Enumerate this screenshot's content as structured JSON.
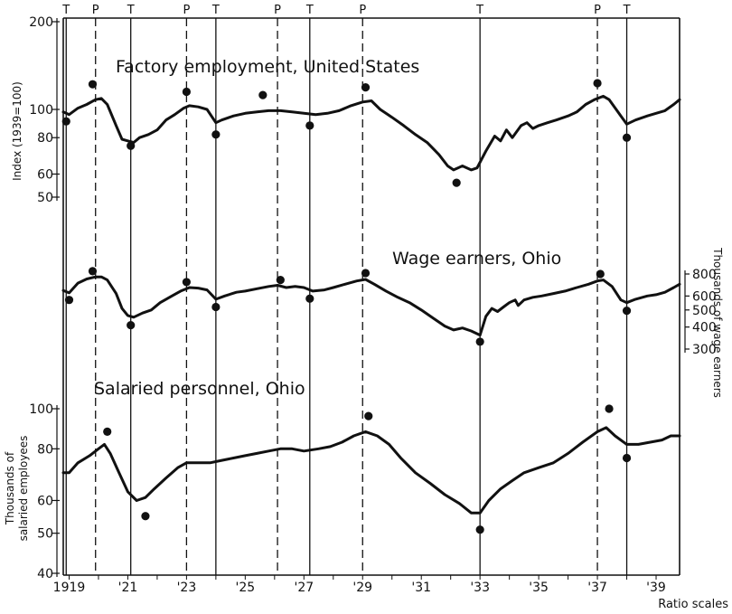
{
  "chart_data": {
    "type": "line",
    "x_axis": {
      "ticks": [
        "1919",
        "'21",
        "'23",
        "'25",
        "'27",
        "'29",
        "'31",
        "'33",
        "'35",
        "'37",
        "'39"
      ],
      "range": [
        1918.8,
        1939.8
      ],
      "note": "Ratio scales"
    },
    "turning_points": [
      {
        "type": "T",
        "x": 1918.9,
        "style": "solid"
      },
      {
        "type": "P",
        "x": 1919.9,
        "style": "dashed"
      },
      {
        "type": "T",
        "x": 1921.1,
        "style": "solid"
      },
      {
        "type": "P",
        "x": 1923.0,
        "style": "dashed"
      },
      {
        "type": "T",
        "x": 1924.0,
        "style": "solid"
      },
      {
        "type": "P",
        "x": 1926.1,
        "style": "dashed"
      },
      {
        "type": "T",
        "x": 1927.2,
        "style": "solid"
      },
      {
        "type": "P",
        "x": 1929.0,
        "style": "dashed"
      },
      {
        "type": "T",
        "x": 1933.0,
        "style": "solid"
      },
      {
        "type": "P",
        "x": 1937.0,
        "style": "dashed"
      },
      {
        "type": "T",
        "x": 1938.0,
        "style": "solid"
      }
    ],
    "panels": [
      {
        "id": "factory",
        "title": "Factory employment, United States",
        "axis_side": "left",
        "ylabel": "Index (1939=100)",
        "yticks": [
          50,
          60,
          80,
          100,
          200
        ],
        "ytick_labels": [
          "50",
          "60",
          "80",
          "100",
          "200"
        ],
        "series": [
          [
            1918.8,
            98
          ],
          [
            1919.0,
            96
          ],
          [
            1919.3,
            101
          ],
          [
            1919.6,
            104
          ],
          [
            1919.9,
            108
          ],
          [
            1920.1,
            109
          ],
          [
            1920.3,
            104
          ],
          [
            1920.6,
            88
          ],
          [
            1920.8,
            79
          ],
          [
            1921.0,
            78
          ],
          [
            1921.2,
            77
          ],
          [
            1921.4,
            80
          ],
          [
            1921.7,
            82
          ],
          [
            1922.0,
            85
          ],
          [
            1922.3,
            92
          ],
          [
            1922.6,
            96
          ],
          [
            1922.9,
            101
          ],
          [
            1923.1,
            103
          ],
          [
            1923.4,
            102
          ],
          [
            1923.7,
            100
          ],
          [
            1924.0,
            90
          ],
          [
            1924.2,
            92
          ],
          [
            1924.6,
            95
          ],
          [
            1925.0,
            97
          ],
          [
            1925.4,
            98
          ],
          [
            1925.8,
            99
          ],
          [
            1926.2,
            99
          ],
          [
            1926.6,
            98
          ],
          [
            1927.0,
            97
          ],
          [
            1927.4,
            96
          ],
          [
            1927.8,
            97
          ],
          [
            1928.2,
            99
          ],
          [
            1928.6,
            103
          ],
          [
            1929.0,
            106
          ],
          [
            1929.3,
            107
          ],
          [
            1929.6,
            100
          ],
          [
            1930.0,
            94
          ],
          [
            1930.4,
            88
          ],
          [
            1930.8,
            82
          ],
          [
            1931.2,
            77
          ],
          [
            1931.6,
            70
          ],
          [
            1931.9,
            64
          ],
          [
            1932.1,
            62
          ],
          [
            1932.4,
            64
          ],
          [
            1932.7,
            62
          ],
          [
            1932.9,
            63
          ],
          [
            1933.2,
            72
          ],
          [
            1933.5,
            81
          ],
          [
            1933.7,
            78
          ],
          [
            1933.9,
            85
          ],
          [
            1934.1,
            80
          ],
          [
            1934.4,
            88
          ],
          [
            1934.6,
            90
          ],
          [
            1934.8,
            86
          ],
          [
            1935.0,
            88
          ],
          [
            1935.3,
            90
          ],
          [
            1935.6,
            92
          ],
          [
            1936.0,
            95
          ],
          [
            1936.3,
            98
          ],
          [
            1936.6,
            104
          ],
          [
            1936.9,
            108
          ],
          [
            1937.2,
            111
          ],
          [
            1937.4,
            108
          ],
          [
            1937.7,
            98
          ],
          [
            1938.0,
            89
          ],
          [
            1938.3,
            92
          ],
          [
            1938.7,
            95
          ],
          [
            1939.0,
            97
          ],
          [
            1939.3,
            99
          ],
          [
            1939.6,
            104
          ],
          [
            1939.8,
            108
          ]
        ],
        "dots": [
          [
            1918.9,
            91
          ],
          [
            1919.8,
            122
          ],
          [
            1921.1,
            75
          ],
          [
            1923.0,
            115
          ],
          [
            1924.0,
            82
          ],
          [
            1925.6,
            112
          ],
          [
            1927.2,
            88
          ],
          [
            1929.1,
            119
          ],
          [
            1932.2,
            56
          ],
          [
            1937.0,
            123
          ],
          [
            1938.0,
            80
          ]
        ]
      },
      {
        "id": "wage",
        "title": "Wage earners, Ohio",
        "axis_side": "right",
        "ylabel": "Thousands of wage earners",
        "yticks": [
          300,
          400,
          500,
          600,
          800
        ],
        "ytick_labels": [
          "300",
          "400",
          "500",
          "600",
          "800"
        ],
        "series": [
          [
            1918.8,
            645
          ],
          [
            1919.0,
            625
          ],
          [
            1919.3,
            710
          ],
          [
            1919.6,
            750
          ],
          [
            1919.9,
            770
          ],
          [
            1920.1,
            770
          ],
          [
            1920.3,
            740
          ],
          [
            1920.6,
            620
          ],
          [
            1920.8,
            510
          ],
          [
            1921.0,
            465
          ],
          [
            1921.2,
            455
          ],
          [
            1921.5,
            480
          ],
          [
            1921.8,
            500
          ],
          [
            1922.1,
            550
          ],
          [
            1922.5,
            600
          ],
          [
            1922.8,
            640
          ],
          [
            1923.1,
            670
          ],
          [
            1923.4,
            665
          ],
          [
            1923.7,
            650
          ],
          [
            1924.0,
            575
          ],
          [
            1924.3,
            600
          ],
          [
            1924.7,
            630
          ],
          [
            1925.0,
            640
          ],
          [
            1925.4,
            660
          ],
          [
            1925.8,
            680
          ],
          [
            1926.1,
            690
          ],
          [
            1926.4,
            670
          ],
          [
            1926.7,
            680
          ],
          [
            1927.0,
            670
          ],
          [
            1927.3,
            640
          ],
          [
            1927.7,
            650
          ],
          [
            1928.0,
            670
          ],
          [
            1928.4,
            700
          ],
          [
            1928.8,
            730
          ],
          [
            1929.1,
            745
          ],
          [
            1929.4,
            700
          ],
          [
            1929.8,
            640
          ],
          [
            1930.2,
            590
          ],
          [
            1930.6,
            550
          ],
          [
            1931.0,
            500
          ],
          [
            1931.4,
            450
          ],
          [
            1931.8,
            405
          ],
          [
            1932.1,
            385
          ],
          [
            1932.4,
            395
          ],
          [
            1932.7,
            380
          ],
          [
            1933.0,
            360
          ],
          [
            1933.2,
            460
          ],
          [
            1933.4,
            510
          ],
          [
            1933.6,
            490
          ],
          [
            1933.8,
            520
          ],
          [
            1934.0,
            550
          ],
          [
            1934.2,
            570
          ],
          [
            1934.3,
            530
          ],
          [
            1934.5,
            570
          ],
          [
            1934.8,
            590
          ],
          [
            1935.1,
            600
          ],
          [
            1935.5,
            620
          ],
          [
            1935.9,
            640
          ],
          [
            1936.3,
            670
          ],
          [
            1936.7,
            700
          ],
          [
            1937.0,
            730
          ],
          [
            1937.2,
            740
          ],
          [
            1937.5,
            680
          ],
          [
            1937.8,
            570
          ],
          [
            1938.0,
            550
          ],
          [
            1938.3,
            575
          ],
          [
            1938.7,
            600
          ],
          [
            1939.0,
            610
          ],
          [
            1939.3,
            630
          ],
          [
            1939.6,
            670
          ],
          [
            1939.8,
            700
          ]
        ],
        "dots": [
          [
            1919.0,
            570
          ],
          [
            1919.8,
            830
          ],
          [
            1921.1,
            410
          ],
          [
            1923.0,
            720
          ],
          [
            1924.0,
            520
          ],
          [
            1926.2,
            740
          ],
          [
            1927.2,
            580
          ],
          [
            1929.1,
            810
          ],
          [
            1933.0,
            330
          ],
          [
            1937.1,
            800
          ],
          [
            1938.0,
            495
          ]
        ]
      },
      {
        "id": "salaried",
        "title": "Salaried personnel, Ohio",
        "axis_side": "left",
        "ylabel": "Thousands of salaried employees",
        "yticks": [
          40,
          50,
          60,
          80,
          100
        ],
        "ytick_labels": [
          "40",
          "50",
          "60",
          "80",
          "100"
        ],
        "series": [
          [
            1918.8,
            70
          ],
          [
            1919.0,
            70
          ],
          [
            1919.3,
            74
          ],
          [
            1919.7,
            77
          ],
          [
            1920.0,
            80
          ],
          [
            1920.2,
            82
          ],
          [
            1920.4,
            78
          ],
          [
            1920.7,
            70
          ],
          [
            1921.0,
            63
          ],
          [
            1921.3,
            60
          ],
          [
            1921.6,
            61
          ],
          [
            1921.9,
            64
          ],
          [
            1922.3,
            68
          ],
          [
            1922.7,
            72
          ],
          [
            1923.0,
            74
          ],
          [
            1923.4,
            74
          ],
          [
            1923.8,
            74
          ],
          [
            1924.2,
            75
          ],
          [
            1924.6,
            76
          ],
          [
            1925.0,
            77
          ],
          [
            1925.4,
            78
          ],
          [
            1925.8,
            79
          ],
          [
            1926.2,
            80
          ],
          [
            1926.6,
            80
          ],
          [
            1927.0,
            79
          ],
          [
            1927.5,
            80
          ],
          [
            1927.9,
            81
          ],
          [
            1928.3,
            83
          ],
          [
            1928.7,
            86
          ],
          [
            1929.1,
            88
          ],
          [
            1929.5,
            86
          ],
          [
            1929.9,
            82
          ],
          [
            1930.3,
            76
          ],
          [
            1930.8,
            70
          ],
          [
            1931.3,
            66
          ],
          [
            1931.8,
            62
          ],
          [
            1932.3,
            59
          ],
          [
            1932.7,
            56
          ],
          [
            1933.0,
            56
          ],
          [
            1933.3,
            60
          ],
          [
            1933.7,
            64
          ],
          [
            1934.1,
            67
          ],
          [
            1934.5,
            70
          ],
          [
            1935.0,
            72
          ],
          [
            1935.5,
            74
          ],
          [
            1936.0,
            78
          ],
          [
            1936.5,
            83
          ],
          [
            1937.0,
            88
          ],
          [
            1937.3,
            90
          ],
          [
            1937.6,
            86
          ],
          [
            1938.0,
            82
          ],
          [
            1938.4,
            82
          ],
          [
            1938.8,
            83
          ],
          [
            1939.2,
            84
          ],
          [
            1939.5,
            86
          ],
          [
            1939.8,
            86
          ]
        ],
        "dots": [
          [
            1920.3,
            88
          ],
          [
            1921.6,
            55
          ],
          [
            1929.2,
            96
          ],
          [
            1933.0,
            51
          ],
          [
            1937.4,
            100
          ],
          [
            1938.0,
            76
          ]
        ]
      }
    ]
  }
}
